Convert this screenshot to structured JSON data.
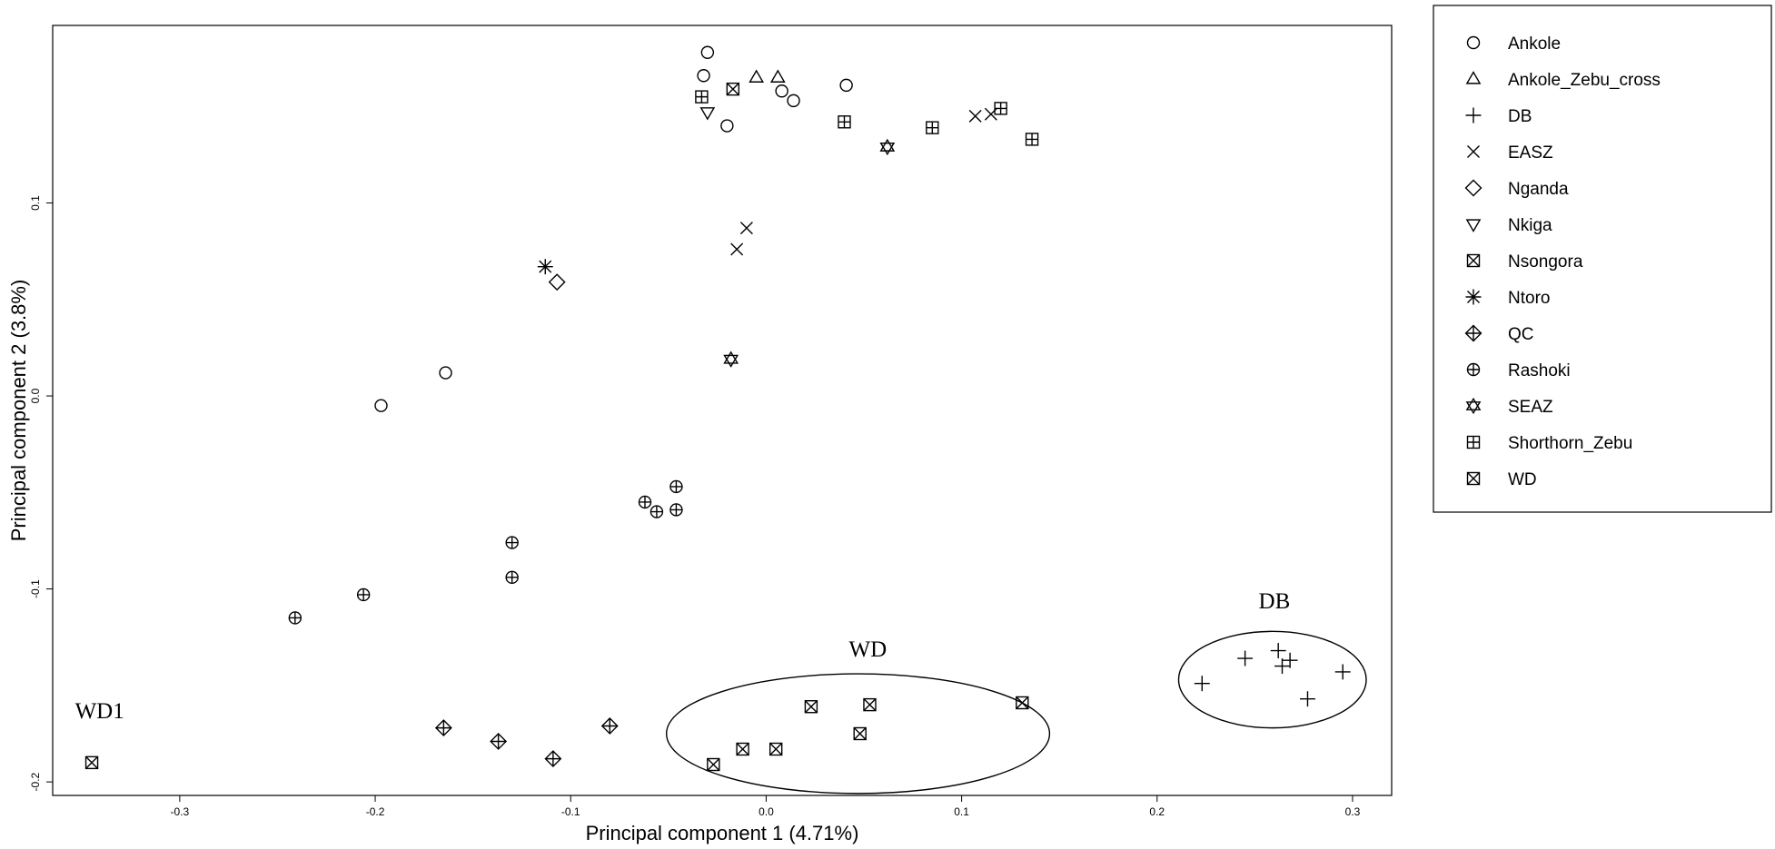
{
  "chart_data": {
    "type": "scatter",
    "xlabel": "Principal component 1 (4.71%)",
    "ylabel": "Principal component 2 (3.8%)",
    "xlim": [
      -0.365,
      0.32
    ],
    "ylim": [
      -0.207,
      0.192
    ],
    "xticks": [
      -0.3,
      -0.2,
      -0.1,
      0.0,
      0.1,
      0.2,
      0.3
    ],
    "xtick_labels": [
      "-0.3",
      "-0.2",
      "-0.1",
      "0.0",
      "0.1",
      "0.2",
      "0.3"
    ],
    "yticks": [
      -0.2,
      -0.1,
      0.0,
      0.1
    ],
    "ytick_labels": [
      "-0.2",
      "-0.1",
      "0.0",
      "0.1"
    ],
    "grid": false,
    "legend_position": "outside-top-right",
    "series": [
      {
        "name": "Ankole",
        "marker": "circle",
        "points": [
          [
            -0.03,
            0.178
          ],
          [
            -0.032,
            0.166
          ],
          [
            -0.02,
            0.14
          ],
          [
            0.008,
            0.158
          ],
          [
            0.014,
            0.153
          ],
          [
            0.041,
            0.161
          ],
          [
            -0.197,
            -0.005
          ],
          [
            -0.164,
            0.012
          ]
        ]
      },
      {
        "name": "Ankole_Zebu_cross",
        "marker": "triangle-up",
        "points": [
          [
            -0.005,
            0.165
          ],
          [
            0.006,
            0.165
          ]
        ]
      },
      {
        "name": "DB",
        "marker": "plus",
        "points": [
          [
            0.223,
            -0.149
          ],
          [
            0.245,
            -0.136
          ],
          [
            0.262,
            -0.132
          ],
          [
            0.264,
            -0.14
          ],
          [
            0.268,
            -0.137
          ],
          [
            0.277,
            -0.157
          ],
          [
            0.295,
            -0.143
          ]
        ]
      },
      {
        "name": "EASZ",
        "marker": "x",
        "points": [
          [
            -0.01,
            0.087
          ],
          [
            -0.015,
            0.076
          ],
          [
            0.107,
            0.145
          ],
          [
            0.115,
            0.146
          ]
        ]
      },
      {
        "name": "Nganda",
        "marker": "diamond",
        "points": [
          [
            -0.107,
            0.059
          ]
        ]
      },
      {
        "name": "Nkiga",
        "marker": "triangle-down",
        "points": [
          [
            -0.03,
            0.147
          ]
        ]
      },
      {
        "name": "Nsongora",
        "marker": "square-x",
        "points": [
          [
            -0.017,
            0.159
          ]
        ]
      },
      {
        "name": "Ntoro",
        "marker": "asterisk",
        "points": [
          [
            -0.113,
            0.067
          ]
        ]
      },
      {
        "name": "QC",
        "marker": "diamond-plus",
        "points": [
          [
            -0.165,
            -0.172
          ],
          [
            -0.137,
            -0.179
          ],
          [
            -0.109,
            -0.188
          ],
          [
            -0.08,
            -0.171
          ]
        ]
      },
      {
        "name": "Rashoki",
        "marker": "circle-plus",
        "points": [
          [
            -0.062,
            -0.055
          ],
          [
            -0.056,
            -0.06
          ],
          [
            -0.046,
            -0.047
          ],
          [
            -0.046,
            -0.059
          ],
          [
            -0.13,
            -0.076
          ],
          [
            -0.13,
            -0.094
          ],
          [
            -0.206,
            -0.103
          ],
          [
            -0.241,
            -0.115
          ]
        ]
      },
      {
        "name": "SEAZ",
        "marker": "star-of-david",
        "points": [
          [
            -0.018,
            0.019
          ],
          [
            0.062,
            0.129
          ]
        ]
      },
      {
        "name": "Shorthorn_Zebu",
        "marker": "square-plus",
        "points": [
          [
            -0.033,
            0.155
          ],
          [
            0.04,
            0.142
          ],
          [
            0.085,
            0.139
          ],
          [
            0.12,
            0.149
          ],
          [
            0.136,
            0.133
          ]
        ]
      },
      {
        "name": "WD",
        "marker": "square-x",
        "points": [
          [
            -0.345,
            -0.19
          ],
          [
            -0.027,
            -0.191
          ],
          [
            -0.012,
            -0.183
          ],
          [
            0.005,
            -0.183
          ],
          [
            0.023,
            -0.161
          ],
          [
            0.048,
            -0.175
          ],
          [
            0.053,
            -0.16
          ],
          [
            0.131,
            -0.159
          ]
        ]
      }
    ],
    "annotations": [
      {
        "text": "DB",
        "x": 0.26,
        "y": -0.11
      },
      {
        "text": "WD",
        "x": 0.052,
        "y": -0.135
      },
      {
        "text": "WD1",
        "x": -0.341,
        "y": -0.167
      }
    ],
    "ellipses": [
      {
        "label": "DB",
        "cx": 0.259,
        "cy": -0.147,
        "rx": 0.048,
        "ry": 0.025
      },
      {
        "label": "WD",
        "cx": 0.047,
        "cy": -0.175,
        "rx": 0.098,
        "ry": 0.031
      }
    ]
  }
}
